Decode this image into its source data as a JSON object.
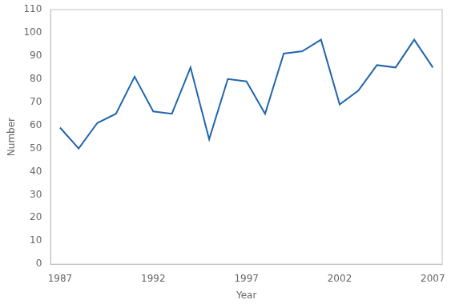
{
  "chart_data": {
    "type": "line",
    "x": [
      1987,
      1988,
      1989,
      1990,
      1991,
      1992,
      1993,
      1994,
      1995,
      1996,
      1997,
      1998,
      1999,
      2000,
      2001,
      2002,
      2003,
      2004,
      2005,
      2006,
      2007
    ],
    "values": [
      59,
      50,
      61,
      65,
      81,
      66,
      65,
      85,
      54,
      80,
      79,
      65,
      91,
      92,
      97,
      69,
      75,
      86,
      85,
      97,
      85
    ],
    "color": "#2166ac",
    "xlabel": "Year",
    "ylabel": "Number",
    "xlim": [
      1986.5,
      2007.5
    ],
    "xticks": [
      1987,
      1992,
      1997,
      2002,
      2007
    ],
    "ylim": [
      0,
      110
    ],
    "yticks": [
      0,
      10,
      20,
      30,
      40,
      50,
      60,
      70,
      80,
      90,
      100,
      110
    ],
    "grid": false
  }
}
